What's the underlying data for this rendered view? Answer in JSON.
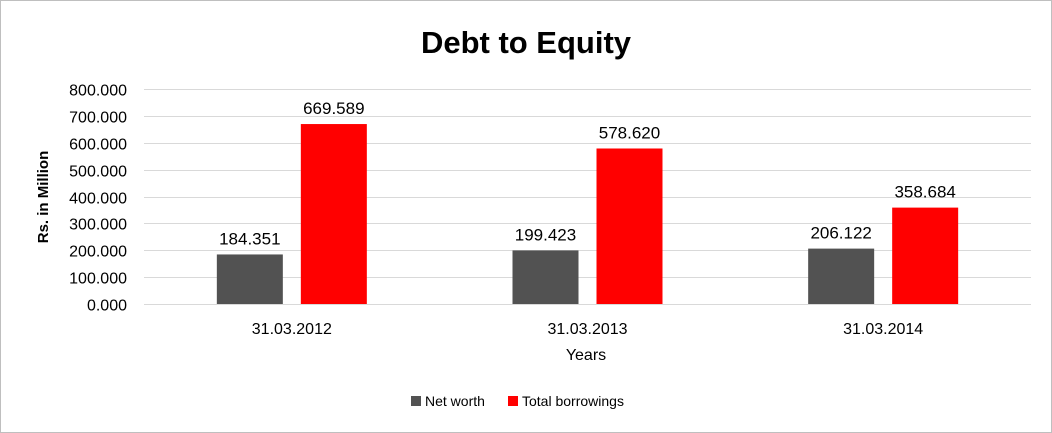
{
  "chart_data": {
    "type": "bar",
    "title": "Debt to Equity",
    "xlabel": "Years",
    "ylabel": "Rs. in Million",
    "categories": [
      "31.03.2012",
      "31.03.2013",
      "31.03.2014"
    ],
    "series": [
      {
        "name": "Net worth",
        "color": "#525252",
        "values": [
          184.351,
          199.423,
          206.122
        ],
        "labels": [
          "184.351",
          "199.423",
          "206.122"
        ]
      },
      {
        "name": "Total borrowings",
        "color": "#ff0000",
        "values": [
          669.589,
          578.62,
          358.684
        ],
        "labels": [
          "669.589",
          "578.620",
          "358.684"
        ]
      }
    ],
    "ylim": [
      0,
      800
    ],
    "yticks": [
      0,
      100,
      200,
      300,
      400,
      500,
      600,
      700,
      800
    ],
    "ytick_labels": [
      "0.000",
      "100.000",
      "200.000",
      "300.000",
      "400.000",
      "500.000",
      "600.000",
      "700.000",
      "800.000"
    ],
    "grid": true,
    "legend_position": "bottom"
  }
}
